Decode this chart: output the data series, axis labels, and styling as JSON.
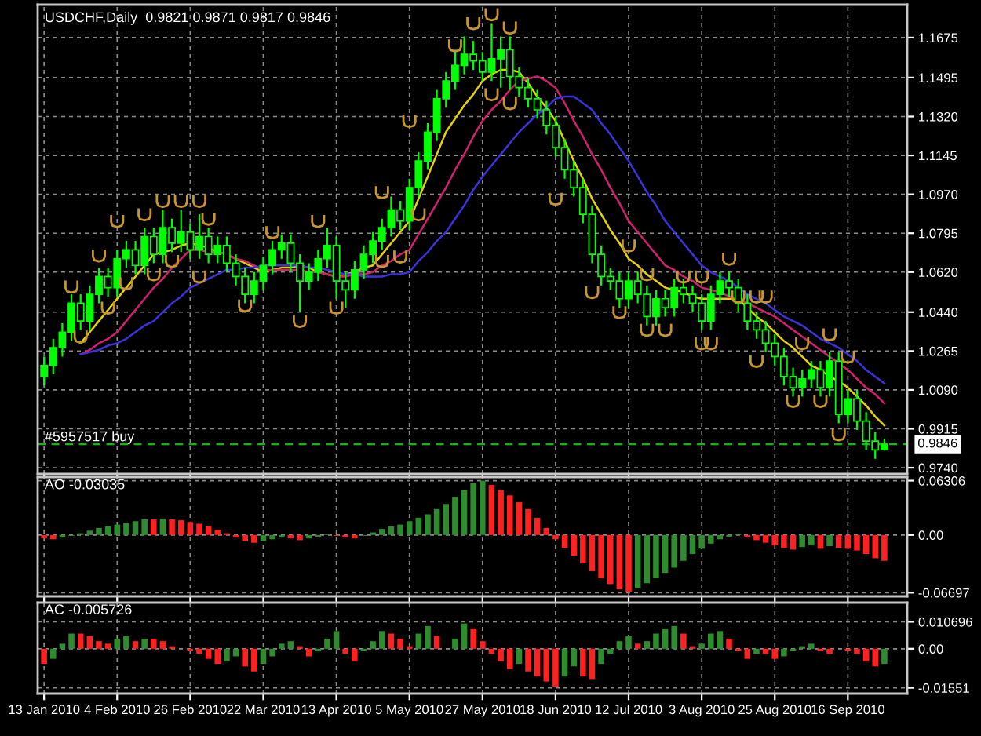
{
  "chart_data": [
    {
      "type": "candlestick",
      "title": "USDCHF,Daily  0.9821 0.9871 0.9817 0.9846",
      "color": "#00ff00",
      "categories": [
        null,
        null,
        null,
        null,
        null,
        null,
        null,
        null,
        null,
        null,
        null,
        null,
        null,
        null,
        null,
        null,
        null,
        null,
        null,
        null,
        null,
        null,
        null,
        null,
        null,
        null,
        null,
        null,
        null,
        null,
        null,
        null,
        null,
        null,
        null,
        null,
        null,
        null,
        null,
        null,
        null,
        null,
        null,
        null,
        null,
        null,
        null,
        null,
        null,
        null,
        null,
        null,
        null,
        null,
        null,
        null,
        null,
        null,
        null,
        null,
        null,
        null,
        null,
        null,
        null,
        null,
        null,
        null,
        null,
        null,
        null,
        null,
        null,
        null,
        null,
        null,
        null,
        null,
        null,
        null,
        null,
        null,
        null,
        null,
        null,
        null,
        null,
        null,
        null,
        null,
        null,
        null,
        null
      ],
      "ohlc": [
        [
          1.015,
          1.024,
          1.011,
          1.02
        ],
        [
          1.02,
          1.032,
          1.016,
          1.028
        ],
        [
          1.028,
          1.039,
          1.024,
          1.035
        ],
        [
          1.035,
          1.052,
          1.031,
          1.048
        ],
        [
          1.048,
          1.052,
          1.036,
          1.04
        ],
        [
          1.04,
          1.056,
          1.036,
          1.052
        ],
        [
          1.052,
          1.064,
          1.048,
          1.06
        ],
        [
          1.06,
          1.064,
          1.051,
          1.055
        ],
        [
          1.055,
          1.072,
          1.051,
          1.068
        ],
        [
          1.068,
          1.076,
          1.064,
          1.072
        ],
        [
          1.072,
          1.076,
          1.061,
          1.065
        ],
        [
          1.065,
          1.082,
          1.061,
          1.078
        ],
        [
          1.078,
          1.082,
          1.066,
          1.07
        ],
        [
          1.07,
          1.09,
          1.066,
          1.082
        ],
        [
          1.082,
          1.086,
          1.071,
          1.075
        ],
        [
          1.075,
          1.09,
          1.071,
          1.08
        ],
        [
          1.08,
          1.084,
          1.068,
          1.072
        ],
        [
          1.072,
          1.088,
          1.068,
          1.078
        ],
        [
          1.078,
          1.082,
          1.066,
          1.07
        ],
        [
          1.07,
          1.078,
          1.066,
          1.074
        ],
        [
          1.074,
          1.078,
          1.062,
          1.066
        ],
        [
          1.066,
          1.07,
          1.056,
          1.06
        ],
        [
          1.06,
          1.064,
          1.048,
          1.052
        ],
        [
          1.052,
          1.062,
          1.048,
          1.058
        ],
        [
          1.058,
          1.069,
          1.054,
          1.065
        ],
        [
          1.065,
          1.076,
          1.061,
          1.072
        ],
        [
          1.072,
          1.079,
          1.068,
          1.075
        ],
        [
          1.075,
          1.079,
          1.062,
          1.066
        ],
        [
          1.066,
          1.07,
          1.044,
          1.058
        ],
        [
          1.058,
          1.066,
          1.054,
          1.062
        ],
        [
          1.062,
          1.072,
          1.058,
          1.068
        ],
        [
          1.068,
          1.082,
          1.064,
          1.074
        ],
        [
          1.074,
          1.078,
          1.05,
          1.058
        ],
        [
          1.058,
          1.062,
          1.046,
          1.054
        ],
        [
          1.054,
          1.067,
          1.05,
          1.063
        ],
        [
          1.063,
          1.074,
          1.059,
          1.07
        ],
        [
          1.07,
          1.08,
          1.066,
          1.076
        ],
        [
          1.076,
          1.086,
          1.072,
          1.082
        ],
        [
          1.082,
          1.096,
          1.078,
          1.09
        ],
        [
          1.09,
          1.094,
          1.081,
          1.085
        ],
        [
          1.085,
          1.104,
          1.081,
          1.1
        ],
        [
          1.1,
          1.116,
          1.096,
          1.112
        ],
        [
          1.112,
          1.129,
          1.108,
          1.125
        ],
        [
          1.125,
          1.144,
          1.121,
          1.14
        ],
        [
          1.14,
          1.152,
          1.136,
          1.148
        ],
        [
          1.148,
          1.162,
          1.144,
          1.155
        ],
        [
          1.155,
          1.168,
          1.151,
          1.16
        ],
        [
          1.16,
          1.166,
          1.153,
          1.157
        ],
        [
          1.157,
          1.161,
          1.148,
          1.152
        ],
        [
          1.152,
          1.174,
          1.148,
          1.158
        ],
        [
          1.158,
          1.168,
          1.145,
          1.162
        ],
        [
          1.162,
          1.168,
          1.144,
          1.15
        ],
        [
          1.15,
          1.154,
          1.141,
          1.145
        ],
        [
          1.145,
          1.149,
          1.136,
          1.14
        ],
        [
          1.14,
          1.144,
          1.131,
          1.135
        ],
        [
          1.135,
          1.139,
          1.124,
          1.128
        ],
        [
          1.128,
          1.132,
          1.114,
          1.118
        ],
        [
          1.118,
          1.122,
          1.104,
          1.108
        ],
        [
          1.108,
          1.112,
          1.096,
          1.1
        ],
        [
          1.1,
          1.104,
          1.084,
          1.088
        ],
        [
          1.088,
          1.092,
          1.066,
          1.07
        ],
        [
          1.07,
          1.074,
          1.056,
          1.06
        ],
        [
          1.06,
          1.064,
          1.054,
          1.058
        ],
        [
          1.058,
          1.062,
          1.046,
          1.05
        ],
        [
          1.05,
          1.062,
          1.046,
          1.058
        ],
        [
          1.058,
          1.062,
          1.048,
          1.052
        ],
        [
          1.052,
          1.056,
          1.038,
          1.042
        ],
        [
          1.042,
          1.054,
          1.038,
          1.05
        ],
        [
          1.05,
          1.054,
          1.042,
          1.046
        ],
        [
          1.046,
          1.059,
          1.042,
          1.055
        ],
        [
          1.055,
          1.059,
          1.048,
          1.052
        ],
        [
          1.052,
          1.056,
          1.044,
          1.048
        ],
        [
          1.048,
          1.052,
          1.036,
          1.04
        ],
        [
          1.04,
          1.056,
          1.036,
          1.052
        ],
        [
          1.052,
          1.062,
          1.048,
          1.058
        ],
        [
          1.058,
          1.062,
          1.051,
          1.055
        ],
        [
          1.055,
          1.059,
          1.044,
          1.048
        ],
        [
          1.048,
          1.052,
          1.036,
          1.04
        ],
        [
          1.04,
          1.044,
          1.032,
          1.036
        ],
        [
          1.036,
          1.04,
          1.026,
          1.03
        ],
        [
          1.03,
          1.034,
          1.02,
          1.024
        ],
        [
          1.024,
          1.028,
          1.011,
          1.015
        ],
        [
          1.015,
          1.019,
          1.006,
          1.01
        ],
        [
          1.01,
          1.018,
          1.006,
          1.014
        ],
        [
          1.014,
          1.022,
          1.01,
          1.018
        ],
        [
          1.018,
          1.022,
          1.006,
          1.01
        ],
        [
          1.01,
          1.026,
          1.006,
          1.022
        ],
        [
          1.022,
          1.026,
          0.994,
          0.998
        ],
        [
          0.998,
          1.009,
          0.994,
          1.005
        ],
        [
          1.005,
          1.009,
          0.991,
          0.995
        ],
        [
          0.995,
          0.999,
          0.982,
          0.986
        ],
        [
          0.986,
          0.99,
          0.978,
          0.982
        ],
        [
          0.9821,
          0.9871,
          0.9817,
          0.9846
        ]
      ],
      "series": [
        {
          "type": "line",
          "color": "#e6d200",
          "values": [
            null,
            null,
            null,
            null,
            1.03,
            1.035,
            1.04,
            1.045,
            1.05,
            1.055,
            1.06,
            1.065,
            1.07,
            1.071,
            1.072,
            1.074,
            1.075,
            1.074,
            1.073,
            1.071,
            1.07,
            1.068,
            1.066,
            1.064,
            1.062,
            1.063,
            1.064,
            1.064,
            1.065,
            1.064,
            1.062,
            1.061,
            1.06,
            1.061,
            1.062,
            1.064,
            1.065,
            1.07,
            1.075,
            1.08,
            1.085,
            1.095,
            1.105,
            1.115,
            1.125,
            1.131,
            1.137,
            1.142,
            1.148,
            1.151,
            1.153,
            1.153,
            1.152,
            1.147,
            1.141,
            1.136,
            1.13,
            1.121,
            1.112,
            1.104,
            1.095,
            1.088,
            1.081,
            1.075,
            1.068,
            1.065,
            1.061,
            1.058,
            1.055,
            1.054,
            1.053,
            1.051,
            1.05,
            1.05,
            1.05,
            1.05,
            1.05,
            1.046,
            1.042,
            1.039,
            1.035,
            1.031,
            1.028,
            1.024,
            1.02,
            1.018,
            1.015,
            1.013,
            1.01,
            1.006,
            1.002,
            0.997,
            0.993
          ]
        },
        {
          "type": "line",
          "color": "#d0206e",
          "values": [
            null,
            null,
            null,
            null,
            1.025,
            1.027,
            1.03,
            1.032,
            1.035,
            1.04,
            1.045,
            1.05,
            1.055,
            1.059,
            1.064,
            1.068,
            1.072,
            1.072,
            1.071,
            1.071,
            1.07,
            1.068,
            1.067,
            1.065,
            1.063,
            1.063,
            1.063,
            1.063,
            1.063,
            1.062,
            1.062,
            1.061,
            1.06,
            1.06,
            1.061,
            1.061,
            1.062,
            1.065,
            1.067,
            1.07,
            1.072,
            1.079,
            1.086,
            1.093,
            1.1,
            1.108,
            1.115,
            1.123,
            1.13,
            1.135,
            1.139,
            1.144,
            1.148,
            1.149,
            1.15,
            1.148,
            1.145,
            1.138,
            1.13,
            1.123,
            1.115,
            1.108,
            1.1,
            1.093,
            1.085,
            1.08,
            1.075,
            1.07,
            1.065,
            1.063,
            1.06,
            1.058,
            1.055,
            1.054,
            1.053,
            1.051,
            1.05,
            1.048,
            1.046,
            1.044,
            1.042,
            1.039,
            1.036,
            1.033,
            1.03,
            1.027,
            1.024,
            1.021,
            1.018,
            1.014,
            1.01,
            1.007,
            1.003
          ]
        },
        {
          "type": "line",
          "color": "#3c32dc",
          "values": [
            null,
            null,
            null,
            null,
            1.025,
            1.026,
            1.027,
            1.029,
            1.03,
            1.032,
            1.035,
            1.038,
            1.04,
            1.044,
            1.048,
            1.051,
            1.055,
            1.057,
            1.059,
            1.061,
            1.063,
            1.063,
            1.064,
            1.064,
            1.065,
            1.065,
            1.065,
            1.065,
            1.065,
            1.064,
            1.064,
            1.063,
            1.062,
            1.061,
            1.061,
            1.06,
            1.06,
            1.06,
            1.061,
            1.061,
            1.062,
            1.067,
            1.071,
            1.076,
            1.08,
            1.086,
            1.092,
            1.099,
            1.105,
            1.11,
            1.115,
            1.12,
            1.125,
            1.129,
            1.133,
            1.136,
            1.14,
            1.141,
            1.141,
            1.138,
            1.135,
            1.129,
            1.124,
            1.118,
            1.112,
            1.105,
            1.098,
            1.092,
            1.085,
            1.08,
            1.075,
            1.07,
            1.065,
            1.062,
            1.06,
            1.058,
            1.055,
            1.052,
            1.05,
            1.048,
            1.045,
            1.042,
            1.04,
            1.038,
            1.035,
            1.032,
            1.03,
            1.028,
            1.025,
            1.022,
            1.018,
            1.015,
            1.012
          ]
        },
        {
          "type": "scatter",
          "color": "#c8962d",
          "values": [
            null,
            null,
            null,
            1.0555,
            1.033,
            null,
            1.0695,
            1.046,
            1.085,
            1.057,
            null,
            1.088,
            1.061,
            1.094,
            1.067,
            1.094,
            null,
            1.094,
            1.086,
            null,
            null,
            null,
            1.047,
            null,
            null,
            1.08,
            null,
            null,
            1.04,
            null,
            1.085,
            null,
            1.046,
            null,
            null,
            null,
            null,
            1.098,
            null,
            1.069,
            1.13,
            1.088,
            null,
            null,
            null,
            1.164,
            null,
            1.174,
            null,
            1.178,
            null,
            1.172,
            null,
            null,
            null,
            null,
            1.095,
            null,
            null,
            null,
            1.053,
            null,
            null,
            1.044,
            1.074,
            null,
            1.036,
            null,
            1.036,
            null,
            1.06,
            null,
            1.03,
            1.03,
            null,
            1.068,
            1.051,
            null,
            1.051,
            1.051,
            null,
            null,
            1.004,
            1.03,
            null,
            1.004,
            1.034,
            0.989,
            1.024,
            null,
            null,
            null,
            null
          ]
        },
        {
          "type": "scatter",
          "color": "#c8962d",
          "values": [
            null,
            null,
            null,
            null,
            null,
            null,
            null,
            null,
            null,
            null,
            null,
            null,
            null,
            null,
            null,
            null,
            null,
            1.06,
            null,
            null,
            null,
            null,
            null,
            null,
            null,
            null,
            null,
            null,
            null,
            null,
            null,
            null,
            null,
            null,
            null,
            null,
            null,
            1.067,
            null,
            null,
            null,
            null,
            null,
            null,
            null,
            null,
            null,
            null,
            null,
            1.142,
            null,
            1.138,
            null,
            null,
            null,
            null,
            null,
            null,
            null,
            null,
            null,
            null,
            null,
            null,
            null,
            null,
            1.061,
            null,
            null,
            null,
            null,
            null,
            1.06,
            null,
            null,
            null,
            null,
            null,
            1.022,
            null,
            null,
            null,
            null,
            null,
            null,
            null,
            null,
            null,
            null,
            null,
            null,
            null,
            null
          ]
        }
      ],
      "ref_lines": [
        {
          "axis": "y",
          "value": 0.9846,
          "label": "#5957517 buy",
          "color": "#00c000",
          "line_style": "dashed"
        }
      ],
      "annotations": [
        "0.9846"
      ],
      "ylim": [
        0.9712,
        1.1823
      ],
      "yticks": [
        1.1675,
        1.1495,
        {
          "value": 1.132,
          "label": "1.1320"
        },
        1.1145,
        {
          "value": 1.097,
          "label": "1.0970"
        },
        1.0795,
        {
          "value": 1.062,
          "label": "1.0620"
        },
        {
          "value": 1.044,
          "label": "1.0440"
        },
        1.0265,
        {
          "value": 1.009,
          "label": "1.0090"
        },
        0.9915,
        {
          "value": 0.974,
          "label": "0.9740"
        }
      ],
      "grid": true,
      "tick_labels": "y"
    },
    {
      "type": "bar",
      "title": "AO -0.03035",
      "categories": [
        null,
        null,
        null,
        null,
        null,
        null,
        null,
        null,
        null,
        null,
        null,
        null,
        null,
        null,
        null,
        null,
        null,
        null,
        null,
        null,
        null,
        null,
        null,
        null,
        null,
        null,
        null,
        null,
        null,
        null,
        null,
        null,
        null,
        null,
        null,
        null,
        null,
        null,
        null,
        null,
        null,
        null,
        null,
        null,
        null,
        null,
        null,
        null,
        null,
        null,
        null,
        null,
        null,
        null,
        null,
        null,
        null,
        null,
        null,
        null,
        null,
        null,
        null,
        null,
        null,
        null,
        null,
        null,
        null,
        null,
        null,
        null,
        null,
        null,
        null,
        null,
        null,
        null,
        null,
        null,
        null,
        null,
        null,
        null,
        null,
        null,
        null,
        null,
        null,
        null,
        null,
        null,
        null
      ],
      "values": [
        -0.004,
        -0.005,
        -0.003,
        -0.001,
        0.002,
        0.005,
        0.008,
        0.01,
        0.012,
        0.014,
        0.016,
        0.018,
        0.018,
        0.019,
        0.018,
        0.017,
        0.015,
        0.013,
        0.01,
        0.006,
        0.002,
        -0.003,
        -0.007,
        -0.009,
        -0.007,
        -0.005,
        -0.003,
        -0.004,
        -0.006,
        -0.004,
        -0.002,
        0.001,
        -0.001,
        -0.003,
        -0.004,
        -0.001,
        0.003,
        0.007,
        0.01,
        0.012,
        0.016,
        0.02,
        0.024,
        0.03,
        0.036,
        0.044,
        0.052,
        0.06,
        0.063,
        0.058,
        0.052,
        0.046,
        0.038,
        0.03,
        0.02,
        0.008,
        -0.005,
        -0.015,
        -0.024,
        -0.033,
        -0.042,
        -0.05,
        -0.057,
        -0.063,
        -0.066,
        -0.062,
        -0.056,
        -0.05,
        -0.044,
        -0.038,
        -0.03,
        -0.022,
        -0.016,
        -0.01,
        -0.005,
        -0.002,
        0.001,
        -0.003,
        -0.006,
        -0.009,
        -0.012,
        -0.015,
        -0.017,
        -0.014,
        -0.012,
        -0.016,
        -0.013,
        -0.015,
        -0.016,
        -0.018,
        -0.022,
        -0.027,
        -0.03
      ],
      "colors": [
        "#ff2020",
        "#ff2020",
        "#2e8b2e",
        "#2e8b2e",
        "#2e8b2e",
        "#2e8b2e",
        "#2e8b2e",
        "#2e8b2e",
        "#2e8b2e",
        "#2e8b2e",
        "#2e8b2e",
        "#2e8b2e",
        "#ff2020",
        "#2e8b2e",
        "#ff2020",
        "#ff2020",
        "#ff2020",
        "#ff2020",
        "#ff2020",
        "#ff2020",
        "#ff2020",
        "#ff2020",
        "#ff2020",
        "#ff2020",
        "#2e8b2e",
        "#2e8b2e",
        "#2e8b2e",
        "#ff2020",
        "#ff2020",
        "#2e8b2e",
        "#2e8b2e",
        "#2e8b2e",
        "#ff2020",
        "#ff2020",
        "#ff2020",
        "#2e8b2e",
        "#2e8b2e",
        "#2e8b2e",
        "#2e8b2e",
        "#2e8b2e",
        "#2e8b2e",
        "#2e8b2e",
        "#2e8b2e",
        "#2e8b2e",
        "#2e8b2e",
        "#2e8b2e",
        "#2e8b2e",
        "#2e8b2e",
        "#2e8b2e",
        "#ff2020",
        "#ff2020",
        "#ff2020",
        "#ff2020",
        "#ff2020",
        "#ff2020",
        "#ff2020",
        "#ff2020",
        "#ff2020",
        "#ff2020",
        "#ff2020",
        "#ff2020",
        "#ff2020",
        "#ff2020",
        "#ff2020",
        "#ff2020",
        "#2e8b2e",
        "#2e8b2e",
        "#2e8b2e",
        "#2e8b2e",
        "#2e8b2e",
        "#2e8b2e",
        "#2e8b2e",
        "#2e8b2e",
        "#2e8b2e",
        "#2e8b2e",
        "#2e8b2e",
        "#2e8b2e",
        "#ff2020",
        "#ff2020",
        "#ff2020",
        "#ff2020",
        "#ff2020",
        "#ff2020",
        "#2e8b2e",
        "#2e8b2e",
        "#ff2020",
        "#2e8b2e",
        "#ff2020",
        "#ff2020",
        "#ff2020",
        "#ff2020",
        "#ff2020",
        "#ff2020"
      ],
      "ylim": [
        -0.0712,
        0.0672
      ],
      "yticks": [
        0.06306,
        {
          "value": 0,
          "label": "0.00"
        },
        -0.06697
      ],
      "grid": true,
      "tick_labels": "y"
    },
    {
      "type": "bar",
      "title": "AC -0.005726",
      "categories": [
        "13 Jan 2010",
        null,
        null,
        null,
        null,
        null,
        null,
        null,
        "4 Feb 2010",
        null,
        null,
        null,
        null,
        null,
        null,
        null,
        "26 Feb 2010",
        null,
        null,
        null,
        null,
        null,
        null,
        null,
        "22 Mar 2010",
        null,
        null,
        null,
        null,
        null,
        null,
        null,
        "13 Apr 2010",
        null,
        null,
        null,
        null,
        null,
        null,
        null,
        "5 May 2010",
        null,
        null,
        null,
        null,
        null,
        null,
        null,
        "27 May 2010",
        null,
        null,
        null,
        null,
        null,
        null,
        null,
        "18 Jun 2010",
        null,
        null,
        null,
        null,
        null,
        null,
        null,
        "12 Jul 2010",
        null,
        null,
        null,
        null,
        null,
        null,
        null,
        "3 Aug 2010",
        null,
        null,
        null,
        null,
        null,
        null,
        null,
        "25 Aug 2010",
        null,
        null,
        null,
        null,
        null,
        null,
        null,
        "16 Sep 2010",
        null,
        null,
        null,
        null
      ],
      "values": [
        -0.006,
        -0.004,
        0.002,
        0.006,
        0.006,
        0.005,
        0.003,
        0.002,
        0.004,
        0.005,
        0.003,
        0.004,
        0.004,
        0.003,
        0.001,
        0.0,
        -0.001,
        -0.002,
        -0.004,
        -0.006,
        -0.005,
        -0.003,
        -0.007,
        -0.009,
        -0.006,
        -0.003,
        0.002,
        0.003,
        0.001,
        -0.003,
        -0.001,
        0.004,
        0.007,
        -0.002,
        -0.005,
        -0.001,
        0.003,
        0.007,
        0.006,
        0.004,
        0.001,
        0.006,
        0.009,
        0.005,
        0.0,
        0.004,
        0.01,
        0.008,
        0.003,
        -0.002,
        -0.005,
        -0.008,
        -0.006,
        -0.009,
        -0.011,
        -0.013,
        -0.015,
        -0.011,
        -0.007,
        -0.011,
        -0.012,
        -0.006,
        -0.002,
        0.003,
        0.005,
        0.002,
        0.003,
        0.006,
        0.008,
        0.009,
        0.006,
        0.001,
        0.002,
        0.006,
        0.007,
        0.004,
        -0.001,
        -0.004,
        -0.002,
        -0.002,
        -0.004,
        -0.003,
        -0.001,
        0.001,
        0.002,
        -0.001,
        -0.002,
        0.0,
        -0.001,
        -0.002,
        -0.005,
        -0.007,
        -0.006
      ],
      "colors": [
        "#ff2020",
        "#2e8b2e",
        "#2e8b2e",
        "#2e8b2e",
        "#ff2020",
        "#ff2020",
        "#ff2020",
        "#ff2020",
        "#2e8b2e",
        "#2e8b2e",
        "#ff2020",
        "#2e8b2e",
        "#ff2020",
        "#ff2020",
        "#ff2020",
        "#ff2020",
        "#ff2020",
        "#ff2020",
        "#ff2020",
        "#ff2020",
        "#2e8b2e",
        "#2e8b2e",
        "#ff2020",
        "#ff2020",
        "#2e8b2e",
        "#2e8b2e",
        "#2e8b2e",
        "#2e8b2e",
        "#ff2020",
        "#ff2020",
        "#2e8b2e",
        "#2e8b2e",
        "#2e8b2e",
        "#ff2020",
        "#ff2020",
        "#2e8b2e",
        "#2e8b2e",
        "#2e8b2e",
        "#ff2020",
        "#ff2020",
        "#ff2020",
        "#2e8b2e",
        "#2e8b2e",
        "#ff2020",
        "#ff2020",
        "#2e8b2e",
        "#2e8b2e",
        "#ff2020",
        "#ff2020",
        "#ff2020",
        "#ff2020",
        "#ff2020",
        "#2e8b2e",
        "#ff2020",
        "#ff2020",
        "#ff2020",
        "#ff2020",
        "#2e8b2e",
        "#2e8b2e",
        "#ff2020",
        "#ff2020",
        "#2e8b2e",
        "#2e8b2e",
        "#2e8b2e",
        "#2e8b2e",
        "#ff2020",
        "#2e8b2e",
        "#2e8b2e",
        "#2e8b2e",
        "#2e8b2e",
        "#ff2020",
        "#ff2020",
        "#2e8b2e",
        "#2e8b2e",
        "#2e8b2e",
        "#ff2020",
        "#ff2020",
        "#ff2020",
        "#2e8b2e",
        "#ff2020",
        "#ff2020",
        "#2e8b2e",
        "#2e8b2e",
        "#2e8b2e",
        "#2e8b2e",
        "#ff2020",
        "#ff2020",
        "#2e8b2e",
        "#ff2020",
        "#ff2020",
        "#ff2020",
        "#ff2020",
        "#2e8b2e"
      ],
      "ylim": [
        -0.0178,
        0.0183
      ],
      "yticks": [
        0.010696,
        {
          "value": 0,
          "label": "0.00"
        },
        -0.01551
      ],
      "grid": true
    }
  ]
}
